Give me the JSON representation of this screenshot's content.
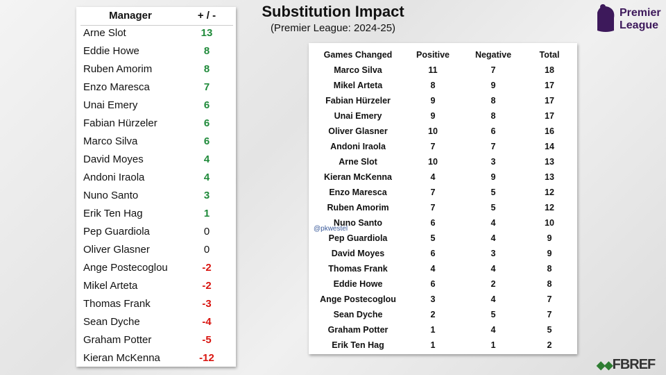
{
  "header": {
    "title": "Substitution Impact",
    "subtitle": "(Premier League: 2024-25)"
  },
  "logo": {
    "line1": "Premier",
    "line2": "League"
  },
  "source": "FBREF",
  "watermark": "@pkwestel",
  "styles": {
    "positive_color": "#1f8a3a",
    "negative_color": "#d9140f",
    "neutral_color": "#111111"
  },
  "left_table": {
    "header": [
      "Manager",
      "+ / -"
    ],
    "rows": [
      [
        "Arne Slot",
        13
      ],
      [
        "Eddie Howe",
        8
      ],
      [
        "Ruben Amorim",
        8
      ],
      [
        "Enzo Maresca",
        7
      ],
      [
        "Unai Emery",
        6
      ],
      [
        "Fabian Hürzeler",
        6
      ],
      [
        "Marco Silva",
        6
      ],
      [
        "David Moyes",
        4
      ],
      [
        "Andoni Iraola",
        4
      ],
      [
        "Nuno Santo",
        3
      ],
      [
        "Erik Ten Hag",
        1
      ],
      [
        "Pep Guardiola",
        0
      ],
      [
        "Oliver Glasner",
        0
      ],
      [
        "Ange Postecoglou",
        -2
      ],
      [
        "Mikel Arteta",
        -2
      ],
      [
        "Thomas Frank",
        -3
      ],
      [
        "Sean Dyche",
        -4
      ],
      [
        "Graham Potter",
        -5
      ],
      [
        "Kieran McKenna",
        -12
      ]
    ]
  },
  "right_table": {
    "header": [
      "Games Changed",
      "Positive",
      "Negative",
      "Total"
    ],
    "rows": [
      [
        "Marco Silva",
        11,
        7,
        18
      ],
      [
        "Mikel Arteta",
        8,
        9,
        17
      ],
      [
        "Fabian Hürzeler",
        9,
        8,
        17
      ],
      [
        "Unai Emery",
        9,
        8,
        17
      ],
      [
        "Oliver Glasner",
        10,
        6,
        16
      ],
      [
        "Andoni Iraola",
        7,
        7,
        14
      ],
      [
        "Arne Slot",
        10,
        3,
        13
      ],
      [
        "Kieran McKenna",
        4,
        9,
        13
      ],
      [
        "Enzo Maresca",
        7,
        5,
        12
      ],
      [
        "Ruben Amorim",
        7,
        5,
        12
      ],
      [
        "Nuno Santo",
        6,
        4,
        10
      ],
      [
        "Pep Guardiola",
        5,
        4,
        9
      ],
      [
        "David Moyes",
        6,
        3,
        9
      ],
      [
        "Thomas Frank",
        4,
        4,
        8
      ],
      [
        "Eddie Howe",
        6,
        2,
        8
      ],
      [
        "Ange Postecoglou",
        3,
        4,
        7
      ],
      [
        "Sean Dyche",
        2,
        5,
        7
      ],
      [
        "Graham Potter",
        1,
        4,
        5
      ],
      [
        "Erik Ten Hag",
        1,
        1,
        2
      ]
    ]
  }
}
